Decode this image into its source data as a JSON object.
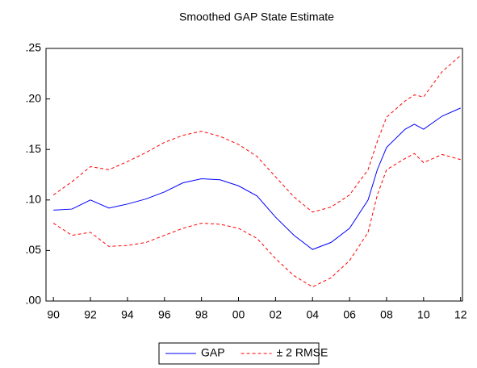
{
  "chart_data": {
    "type": "line",
    "title": "Smoothed GAP State Estimate",
    "x": [
      1990,
      1991,
      1992,
      1993,
      1994,
      1995,
      1996,
      1997,
      1998,
      1999,
      2000,
      2001,
      2002,
      2003,
      2004,
      2005,
      2006,
      2007,
      2007.5,
      2008,
      2009,
      2009.5,
      2010,
      2011,
      2012
    ],
    "series": [
      {
        "name": "GAP",
        "color": "#0000ff",
        "dashed": false,
        "values": [
          0.09,
          0.091,
          0.1,
          0.092,
          0.096,
          0.101,
          0.108,
          0.117,
          0.121,
          0.12,
          0.114,
          0.104,
          0.083,
          0.065,
          0.051,
          0.058,
          0.072,
          0.1,
          0.13,
          0.152,
          0.17,
          0.175,
          0.17,
          0.183,
          0.191
        ]
      },
      {
        "name": "± 2 RMSE",
        "color": "#ff0000",
        "dashed": true,
        "values": [
          0.105,
          0.118,
          0.133,
          0.13,
          0.138,
          0.147,
          0.157,
          0.164,
          0.168,
          0.163,
          0.155,
          0.143,
          0.123,
          0.103,
          0.088,
          0.093,
          0.105,
          0.13,
          0.158,
          0.182,
          0.198,
          0.204,
          0.202,
          0.227,
          0.243
        ],
        "lower_values": [
          0.077,
          0.065,
          0.068,
          0.054,
          0.055,
          0.058,
          0.065,
          0.072,
          0.077,
          0.076,
          0.072,
          0.062,
          0.042,
          0.025,
          0.014,
          0.023,
          0.04,
          0.068,
          0.105,
          0.13,
          0.141,
          0.146,
          0.137,
          0.145,
          0.14
        ]
      }
    ],
    "xlim": [
      1989.6,
      2012.1
    ],
    "xticks": [
      {
        "value": 1990,
        "label": "90"
      },
      {
        "value": 1992,
        "label": "92"
      },
      {
        "value": 1994,
        "label": "94"
      },
      {
        "value": 1996,
        "label": "96"
      },
      {
        "value": 1998,
        "label": "98"
      },
      {
        "value": 2000,
        "label": "00"
      },
      {
        "value": 2002,
        "label": "02"
      },
      {
        "value": 2004,
        "label": "04"
      },
      {
        "value": 2006,
        "label": "06"
      },
      {
        "value": 2008,
        "label": "08"
      },
      {
        "value": 2010,
        "label": "10"
      },
      {
        "value": 2012,
        "label": "12"
      }
    ],
    "ylim": [
      0,
      0.25
    ],
    "yticks": [
      {
        "value": 0,
        "label": ".00"
      },
      {
        "value": 0.05,
        "label": ".05"
      },
      {
        "value": 0.1,
        "label": ".10"
      },
      {
        "value": 0.15,
        "label": ".15"
      },
      {
        "value": 0.2,
        "label": ".20"
      },
      {
        "value": 0.25,
        "label": ".25"
      }
    ],
    "grid": false
  }
}
